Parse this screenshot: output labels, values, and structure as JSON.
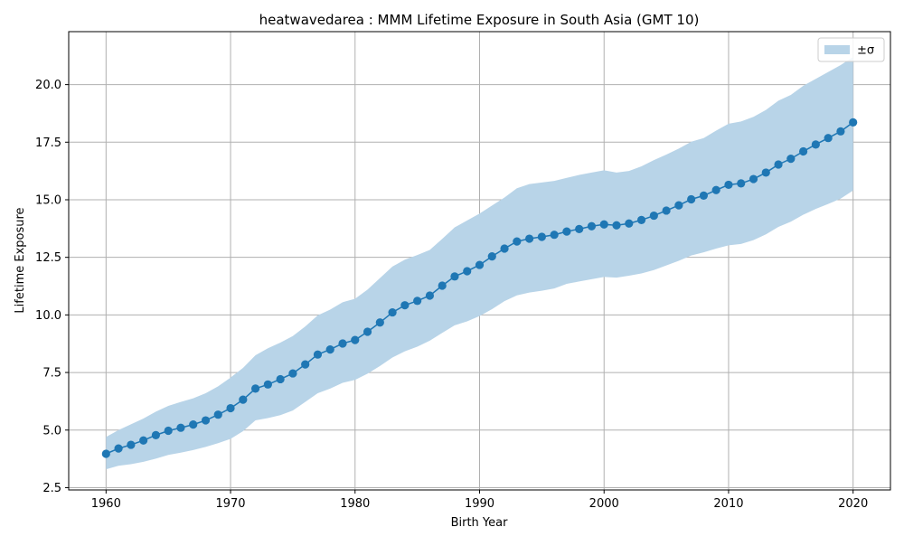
{
  "chart_data": {
    "type": "line",
    "title": "heatwavedarea : MMM Lifetime Exposure in South Asia (GMT 10)",
    "xlabel": "Birth Year",
    "ylabel": "Lifetime Exposure",
    "xlim": [
      1957,
      2023
    ],
    "ylim": [
      2.4,
      22.3
    ],
    "xticks": [
      1960,
      1970,
      1980,
      1990,
      2000,
      2010,
      2020
    ],
    "yticks": [
      2.5,
      5.0,
      7.5,
      10.0,
      12.5,
      15.0,
      17.5,
      20.0
    ],
    "ytick_labels": [
      "2.5",
      "5.0",
      "7.5",
      "10.0",
      "12.5",
      "15.0",
      "17.5",
      "20.0"
    ],
    "grid": true,
    "legend": {
      "position": "top-right",
      "entries": [
        "±σ"
      ]
    },
    "colors": {
      "line": "#1f77b4",
      "band": "#b8d4e8",
      "grid": "#b0b0b0"
    },
    "x": [
      1960,
      1961,
      1962,
      1963,
      1964,
      1965,
      1966,
      1967,
      1968,
      1969,
      1970,
      1971,
      1972,
      1973,
      1974,
      1975,
      1976,
      1977,
      1978,
      1979,
      1980,
      1981,
      1982,
      1983,
      1984,
      1985,
      1986,
      1987,
      1988,
      1989,
      1990,
      1991,
      1992,
      1993,
      1994,
      1995,
      1996,
      1997,
      1998,
      1999,
      2000,
      2001,
      2002,
      2003,
      2004,
      2005,
      2006,
      2007,
      2008,
      2009,
      2010,
      2011,
      2012,
      2013,
      2014,
      2015,
      2016,
      2017,
      2018,
      2019,
      2020
    ],
    "series": [
      {
        "name": "mean",
        "values": [
          3.97,
          4.2,
          4.36,
          4.55,
          4.78,
          4.97,
          5.1,
          5.24,
          5.42,
          5.67,
          5.95,
          6.32,
          6.8,
          6.98,
          7.21,
          7.46,
          7.85,
          8.28,
          8.5,
          8.76,
          8.91,
          9.27,
          9.67,
          10.11,
          10.42,
          10.61,
          10.84,
          11.27,
          11.67,
          11.9,
          12.17,
          12.54,
          12.88,
          13.19,
          13.31,
          13.39,
          13.48,
          13.62,
          13.73,
          13.85,
          13.93,
          13.89,
          13.97,
          14.12,
          14.31,
          14.53,
          14.76,
          15.02,
          15.18,
          15.42,
          15.65,
          15.71,
          15.9,
          16.18,
          16.53,
          16.78,
          17.1,
          17.4,
          17.68,
          17.97,
          18.36
        ]
      },
      {
        "name": "upper",
        "values": [
          4.7,
          5.0,
          5.25,
          5.5,
          5.8,
          6.05,
          6.22,
          6.38,
          6.6,
          6.9,
          7.28,
          7.7,
          8.25,
          8.55,
          8.8,
          9.08,
          9.5,
          9.98,
          10.23,
          10.55,
          10.7,
          11.1,
          11.6,
          12.1,
          12.4,
          12.6,
          12.82,
          13.3,
          13.8,
          14.1,
          14.4,
          14.75,
          15.1,
          15.5,
          15.68,
          15.75,
          15.82,
          15.95,
          16.08,
          16.18,
          16.28,
          16.18,
          16.25,
          16.45,
          16.72,
          16.96,
          17.22,
          17.52,
          17.68,
          18.0,
          18.3,
          18.4,
          18.6,
          18.9,
          19.3,
          19.55,
          19.95,
          20.25,
          20.55,
          20.85,
          21.2
        ]
      },
      {
        "name": "lower",
        "values": [
          3.3,
          3.45,
          3.52,
          3.62,
          3.76,
          3.92,
          4.02,
          4.13,
          4.27,
          4.43,
          4.62,
          4.95,
          5.42,
          5.52,
          5.65,
          5.85,
          6.22,
          6.6,
          6.8,
          7.05,
          7.18,
          7.45,
          7.78,
          8.15,
          8.42,
          8.62,
          8.88,
          9.22,
          9.55,
          9.72,
          9.95,
          10.25,
          10.6,
          10.85,
          10.97,
          11.05,
          11.15,
          11.35,
          11.45,
          11.55,
          11.65,
          11.62,
          11.7,
          11.8,
          11.95,
          12.15,
          12.35,
          12.58,
          12.72,
          12.88,
          13.02,
          13.08,
          13.25,
          13.5,
          13.82,
          14.05,
          14.35,
          14.6,
          14.82,
          15.05,
          15.4
        ]
      }
    ]
  }
}
